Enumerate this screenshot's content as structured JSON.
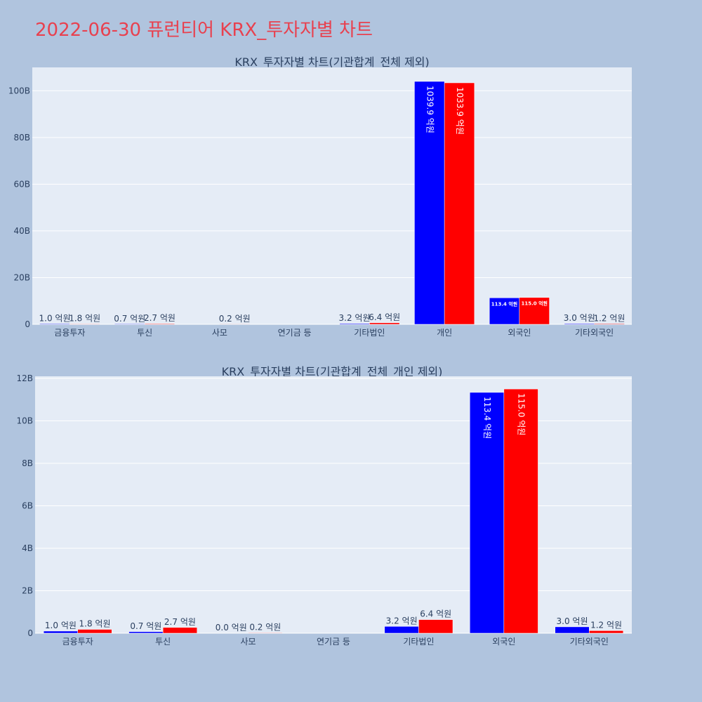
{
  "title": "2022-06-30 퓨런티어 KRX_투자자별 차트",
  "colors": {
    "series_a": "#0000ff",
    "series_b": "#ff0000",
    "plot_bg": "#e5ecf6",
    "page_bg": "#b0c4de",
    "title": "#e8414f"
  },
  "chart_data": [
    {
      "type": "bar",
      "title": "KRX_투자자별 차트(기관합계_전체 제외)",
      "categories": [
        "금융투자",
        "투신",
        "사모",
        "연기금 등",
        "기타법인",
        "개인",
        "외국인",
        "기타외국인"
      ],
      "series": [
        {
          "color": "#0000ff",
          "values": [
            1.0,
            0.7,
            0.0,
            0.0,
            3.2,
            1039.9,
            113.4,
            3.0
          ],
          "labels": [
            "1.0 억원",
            "0.7 억원",
            "",
            "",
            "3.2 억원",
            "1039.9 억원",
            "113.4 억원",
            "3.0 억원"
          ]
        },
        {
          "color": "#ff0000",
          "values": [
            1.8,
            2.7,
            0.2,
            0.0,
            6.4,
            1033.9,
            115.0,
            1.2
          ],
          "labels": [
            "1.8 억원",
            "2.7 억원",
            "0.2 억원",
            "",
            "6.4 억원",
            "1033.9 억원",
            "115.0 억원",
            "1.2 억원"
          ]
        }
      ],
      "ylim": [
        0,
        1100
      ],
      "yticks": [
        0,
        200,
        400,
        600,
        800,
        1000
      ],
      "yticklabels": [
        "0",
        "20B",
        "40B",
        "60B",
        "80B",
        "100B"
      ],
      "grid": true
    },
    {
      "type": "bar",
      "title": "KRX_투자자별 차트(기관합계_전체_개인 제외)",
      "categories": [
        "금융투자",
        "투신",
        "사모",
        "연기금 등",
        "기타법인",
        "외국인",
        "기타외국인"
      ],
      "series": [
        {
          "color": "#0000ff",
          "values": [
            1.0,
            0.7,
            0.0,
            0.0,
            3.2,
            113.4,
            3.0
          ],
          "labels": [
            "1.0 억원",
            "0.7 억원",
            "0.0 억원",
            "",
            "3.2 억원",
            "113.4 억원",
            "3.0 억원"
          ]
        },
        {
          "color": "#ff0000",
          "values": [
            1.8,
            2.7,
            0.2,
            0.0,
            6.4,
            115.0,
            1.2
          ],
          "labels": [
            "1.8 억원",
            "2.7 억원",
            "0.2 억원",
            "",
            "6.4 억원",
            "115.0 억원",
            "1.2 억원"
          ]
        }
      ],
      "ylim": [
        0,
        121
      ],
      "yticks": [
        0,
        20,
        40,
        60,
        80,
        100,
        120
      ],
      "yticklabels": [
        "0",
        "2B",
        "4B",
        "6B",
        "8B",
        "10B",
        "12B"
      ],
      "grid": true
    }
  ]
}
